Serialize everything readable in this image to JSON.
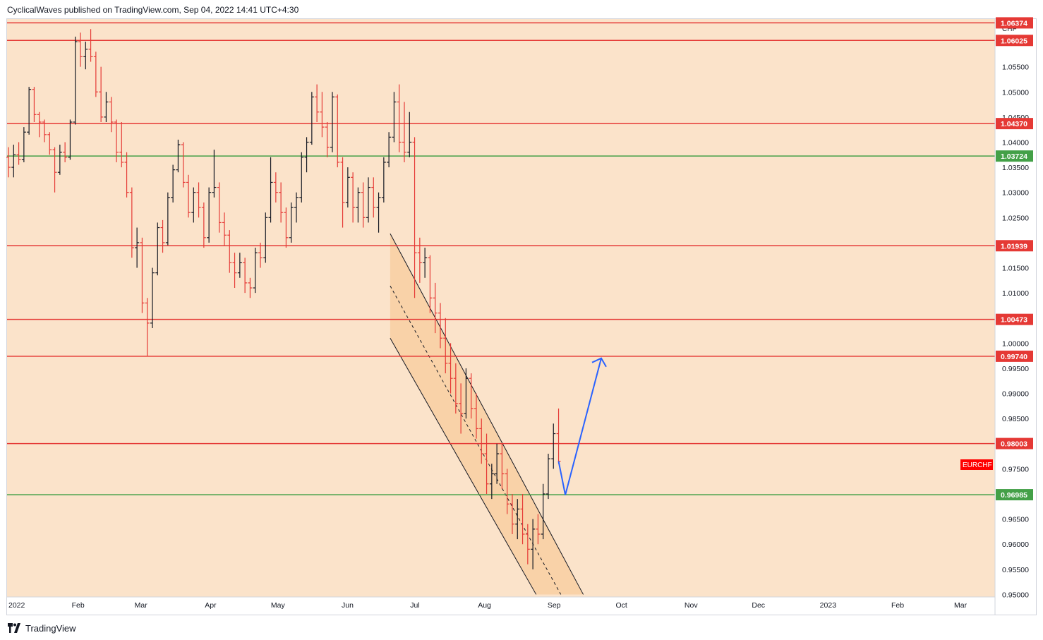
{
  "header": {
    "published_line": "CyclicalWaves published on TradingView.com, Sep 04, 2022 14:41 UTC+4:30"
  },
  "footer": {
    "brand": "TradingView",
    "logo_icon": "tradingview-logo-icon"
  },
  "colors": {
    "background": "#fbe3ca",
    "bull": "#131722",
    "bear": "#e53935",
    "resistance": "#e53935",
    "support": "#43a047",
    "projection": "#2962ff",
    "channel_fill": "#f7c48d",
    "channel_line": "#131722",
    "symbol_badge": "#ff0000"
  },
  "chart_data": {
    "type": "ohlc_bar",
    "symbol": "EURCHF",
    "currency": "CHF",
    "y_ticks": [
      "1.05500",
      "1.05000",
      "1.04500",
      "1.04000",
      "1.03500",
      "1.03000",
      "1.02500",
      "1.02000",
      "1.01500",
      "1.01000",
      "1.00500",
      "1.00000",
      "0.99500",
      "0.99000",
      "0.98500",
      "0.98000",
      "0.97500",
      "0.97000",
      "0.96500",
      "0.96000",
      "0.95500",
      "0.95000"
    ],
    "y_tick_values": [
      1.055,
      1.05,
      1.045,
      1.04,
      1.035,
      1.03,
      1.025,
      1.02,
      1.015,
      1.01,
      1.005,
      1.0,
      0.995,
      0.99,
      0.985,
      0.98,
      0.975,
      0.97,
      0.965,
      0.96,
      0.955,
      0.95
    ],
    "ylim": [
      0.9495,
      1.0645
    ],
    "x_ticks": [
      {
        "label": "2022",
        "day": 0
      },
      {
        "label": "Feb",
        "day": 31
      },
      {
        "label": "Mar",
        "day": 59
      },
      {
        "label": "Apr",
        "day": 90
      },
      {
        "label": "May",
        "day": 120
      },
      {
        "label": "Jun",
        "day": 151
      },
      {
        "label": "Jul",
        "day": 181
      },
      {
        "label": "Aug",
        "day": 212
      },
      {
        "label": "Sep",
        "day": 243
      },
      {
        "label": "Oct",
        "day": 273
      },
      {
        "label": "Nov",
        "day": 304
      },
      {
        "label": "Dec",
        "day": 334
      },
      {
        "label": "2023",
        "day": 365
      },
      {
        "label": "Feb",
        "day": 396
      },
      {
        "label": "Mar",
        "day": 424
      }
    ],
    "horizontal_levels": [
      {
        "value": 1.06374,
        "label": "1.06374",
        "kind": "resistance"
      },
      {
        "value": 1.06025,
        "label": "1.06025",
        "kind": "resistance"
      },
      {
        "value": 1.0437,
        "label": "1.04370",
        "kind": "resistance"
      },
      {
        "value": 1.03724,
        "label": "1.03724",
        "kind": "support"
      },
      {
        "value": 1.01939,
        "label": "1.01939",
        "kind": "resistance"
      },
      {
        "value": 1.00473,
        "label": "1.00473",
        "kind": "resistance"
      },
      {
        "value": 0.9974,
        "label": "0.99740",
        "kind": "resistance"
      },
      {
        "value": 0.98003,
        "label": "0.98003",
        "kind": "resistance"
      },
      {
        "value": 0.96985,
        "label": "0.96985",
        "kind": "support"
      }
    ],
    "last_price_label": "EURCHF",
    "channel": {
      "upper": [
        {
          "day": 170,
          "price": 1.0218
        },
        {
          "day": 256,
          "price": 0.95
        }
      ],
      "lower": [
        {
          "day": 170,
          "price": 1.001
        },
        {
          "day": 235,
          "price": 0.95
        }
      ],
      "mid": [
        {
          "day": 170,
          "price": 1.0114
        },
        {
          "day": 246,
          "price": 0.95
        }
      ]
    },
    "projection": [
      {
        "day": 245,
        "price": 0.9765
      },
      {
        "day": 248,
        "price": 0.9698
      },
      {
        "day": 264,
        "price": 0.997
      }
    ],
    "seed_ohlc": {
      "note": "",
      "bars": [
        [
          1.037,
          1.039,
          1.033,
          1.035
        ],
        [
          1.035,
          1.0395,
          1.033,
          1.0375
        ],
        [
          1.0375,
          1.04,
          1.0355,
          1.0365
        ],
        [
          1.0365,
          1.043,
          1.036,
          1.042
        ],
        [
          1.042,
          1.051,
          1.0415,
          1.0505
        ],
        [
          1.0505,
          1.051,
          1.044,
          1.0455
        ],
        [
          1.0455,
          1.046,
          1.041,
          1.044
        ],
        [
          1.044,
          1.0445,
          1.04,
          1.0415
        ],
        [
          1.0415,
          1.042,
          1.0375,
          1.0385
        ],
        [
          1.0385,
          1.039,
          1.03,
          1.034
        ],
        [
          1.034,
          1.0395,
          1.0335,
          1.038
        ],
        [
          1.038,
          1.04,
          1.036,
          1.037
        ],
        [
          1.037,
          1.0445,
          1.0365,
          1.044
        ],
        [
          1.044,
          1.061,
          1.0435,
          1.06
        ],
        [
          1.06,
          1.0618,
          1.055,
          1.057
        ],
        [
          1.057,
          1.06,
          1.0545,
          1.0585
        ],
        [
          1.0585,
          1.0625,
          1.056,
          1.057
        ],
        [
          1.057,
          1.058,
          1.049,
          1.05
        ],
        [
          1.05,
          1.055,
          1.044,
          1.045
        ],
        [
          1.045,
          1.05,
          1.044,
          1.048
        ],
        [
          1.048,
          1.049,
          1.042,
          1.044
        ],
        [
          1.044,
          1.0445,
          1.036,
          1.038
        ],
        [
          1.038,
          1.044,
          1.035,
          1.036
        ],
        [
          1.036,
          1.038,
          1.029,
          1.03
        ],
        [
          1.03,
          1.031,
          1.017,
          1.019
        ],
        [
          1.019,
          1.023,
          1.015,
          1.02
        ],
        [
          1.02,
          1.021,
          1.006,
          1.008
        ],
        [
          1.008,
          1.009,
          0.9975,
          1.004
        ],
        [
          1.004,
          1.015,
          1.003,
          1.014
        ],
        [
          1.014,
          1.024,
          1.0135,
          1.023
        ],
        [
          1.023,
          1.0245,
          1.018,
          1.02
        ],
        [
          1.02,
          1.03,
          1.0195,
          1.029
        ],
        [
          1.029,
          1.0355,
          1.028,
          1.0345
        ],
        [
          1.0345,
          1.0405,
          1.034,
          1.0395
        ],
        [
          1.0395,
          1.04,
          1.031,
          1.032
        ],
        [
          1.032,
          1.0335,
          1.025,
          1.026
        ],
        [
          1.026,
          1.031,
          1.024,
          1.03
        ],
        [
          1.03,
          1.032,
          1.025,
          1.027
        ],
        [
          1.027,
          1.028,
          1.019,
          1.021
        ],
        [
          1.021,
          1.031,
          1.02,
          1.03
        ],
        [
          1.03,
          1.0385,
          1.029,
          1.031
        ],
        [
          1.031,
          1.032,
          1.022,
          1.024
        ],
        [
          1.024,
          1.026,
          1.0195,
          1.0215
        ],
        [
          1.0215,
          1.0225,
          1.014,
          1.016
        ],
        [
          1.016,
          1.018,
          1.011,
          1.014
        ],
        [
          1.014,
          1.018,
          1.013,
          1.016
        ],
        [
          1.016,
          1.017,
          1.01,
          1.012
        ],
        [
          1.012,
          1.013,
          1.009,
          1.011
        ],
        [
          1.011,
          1.019,
          1.01,
          1.018
        ],
        [
          1.018,
          1.02,
          1.015,
          1.017
        ],
        [
          1.017,
          1.026,
          1.016,
          1.025
        ],
        [
          1.025,
          1.037,
          1.024,
          1.032
        ],
        [
          1.032,
          1.034,
          1.028,
          1.03
        ],
        [
          1.03,
          1.032,
          1.024,
          1.026
        ],
        [
          1.026,
          1.027,
          1.019,
          1.021
        ],
        [
          1.021,
          1.028,
          1.02,
          1.027
        ],
        [
          1.027,
          1.03,
          1.024,
          1.029
        ],
        [
          1.029,
          1.038,
          1.028,
          1.037
        ],
        [
          1.037,
          1.041,
          1.034,
          1.04
        ],
        [
          1.04,
          1.05,
          1.0395,
          1.049
        ],
        [
          1.049,
          1.0515,
          1.044,
          1.046
        ],
        [
          1.046,
          1.05,
          1.041,
          1.043
        ],
        [
          1.043,
          1.044,
          1.037,
          1.039
        ],
        [
          1.039,
          1.05,
          1.038,
          1.049
        ],
        [
          1.049,
          1.0495,
          1.035,
          1.036
        ],
        [
          1.036,
          1.037,
          1.023,
          1.028
        ],
        [
          1.028,
          1.035,
          1.027,
          1.033
        ],
        [
          1.033,
          1.034,
          1.024,
          1.027
        ],
        [
          1.027,
          1.031,
          1.024,
          1.03
        ],
        [
          1.03,
          1.032,
          1.023,
          1.025
        ],
        [
          1.025,
          1.033,
          1.024,
          1.031
        ],
        [
          1.031,
          1.033,
          1.025,
          1.027
        ],
        [
          1.027,
          1.03,
          1.022,
          1.029
        ],
        [
          1.029,
          1.037,
          1.028,
          1.036
        ],
        [
          1.036,
          1.042,
          1.035,
          1.041
        ],
        [
          1.041,
          1.05,
          1.04,
          1.048
        ],
        [
          1.048,
          1.0515,
          1.038,
          1.04
        ],
        [
          1.04,
          1.048,
          1.036,
          1.038
        ],
        [
          1.038,
          1.046,
          1.037,
          1.04
        ],
        [
          1.04,
          1.041,
          1.009,
          1.018
        ],
        [
          1.018,
          1.021,
          1.012,
          1.016
        ],
        [
          1.016,
          1.019,
          1.013,
          1.017
        ],
        [
          1.017,
          1.0175,
          1.006,
          1.009
        ],
        [
          1.009,
          1.012,
          1.002,
          1.006
        ],
        [
          1.006,
          1.008,
          0.999,
          1.001
        ],
        [
          1.001,
          1.005,
          0.994,
          0.996
        ],
        [
          0.996,
          1.0,
          0.99,
          0.993
        ],
        [
          0.993,
          0.996,
          0.986,
          0.988
        ],
        [
          0.988,
          0.992,
          0.982,
          0.986
        ],
        [
          0.986,
          0.995,
          0.985,
          0.993
        ],
        [
          0.993,
          0.994,
          0.985,
          0.987
        ],
        [
          0.987,
          0.99,
          0.981,
          0.983
        ],
        [
          0.983,
          0.985,
          0.976,
          0.978
        ],
        [
          0.978,
          0.982,
          0.97,
          0.972
        ],
        [
          0.972,
          0.976,
          0.969,
          0.974
        ],
        [
          0.974,
          0.98,
          0.972,
          0.978
        ],
        [
          0.978,
          0.98,
          0.971,
          0.974
        ],
        [
          0.974,
          0.975,
          0.966,
          0.968
        ],
        [
          0.968,
          0.97,
          0.962,
          0.964
        ],
        [
          0.964,
          0.969,
          0.961,
          0.967
        ],
        [
          0.967,
          0.97,
          0.96,
          0.962
        ],
        [
          0.962,
          0.964,
          0.956,
          0.959
        ],
        [
          0.959,
          0.965,
          0.955,
          0.963
        ],
        [
          0.963,
          0.966,
          0.96,
          0.962
        ],
        [
          0.962,
          0.972,
          0.961,
          0.97
        ],
        [
          0.97,
          0.978,
          0.969,
          0.977
        ],
        [
          0.977,
          0.984,
          0.975,
          0.982
        ],
        [
          0.982,
          0.987,
          0.976,
          0.9765
        ]
      ]
    }
  }
}
